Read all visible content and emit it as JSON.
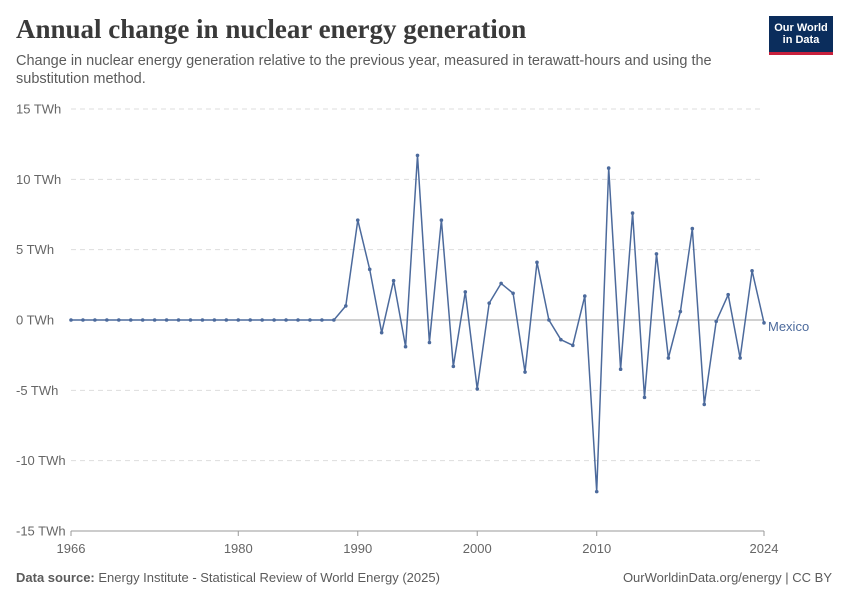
{
  "header": {
    "title": "Annual change in nuclear energy generation",
    "subtitle": "Change in nuclear energy generation relative to the previous year, measured in terawatt-hours and using the substitution method.",
    "logo_line1": "Our World",
    "logo_line2": "in Data"
  },
  "footer": {
    "source_label": "Data source:",
    "source_text": "Energy Institute - Statistical Review of World Energy (2025)",
    "right_text": "OurWorldinData.org/energy | CC BY"
  },
  "colors": {
    "series": "#4c6a9c",
    "grid": "#dddddd",
    "zero_line": "#a0a0a0"
  },
  "chart_data": {
    "type": "line",
    "title": "Annual change in nuclear energy generation",
    "xlabel": "",
    "ylabel": "",
    "xlim": [
      1965,
      2024
    ],
    "ylim": [
      -15,
      15
    ],
    "y_ticks": [
      15,
      10,
      5,
      0,
      -5,
      -10,
      -15
    ],
    "y_tick_labels": [
      "15 TWh",
      "10 TWh",
      "5 TWh",
      "0 TWh",
      "-5 TWh",
      "-10 TWh",
      "-15 TWh"
    ],
    "x_ticks": [
      1966,
      1980,
      1990,
      2000,
      2010,
      2024
    ],
    "x_tick_labels": [
      "1966",
      "1980",
      "1990",
      "2000",
      "2010",
      "2024"
    ],
    "grid": true,
    "series": [
      {
        "name": "Mexico",
        "x": [
          1966,
          1967,
          1968,
          1969,
          1970,
          1971,
          1972,
          1973,
          1974,
          1975,
          1976,
          1977,
          1978,
          1979,
          1980,
          1981,
          1982,
          1983,
          1984,
          1985,
          1986,
          1987,
          1988,
          1989,
          1990,
          1991,
          1992,
          1993,
          1994,
          1995,
          1996,
          1997,
          1998,
          1999,
          2000,
          2001,
          2002,
          2003,
          2004,
          2005,
          2006,
          2007,
          2008,
          2009,
          2010,
          2011,
          2012,
          2013,
          2014,
          2015,
          2016,
          2017,
          2018,
          2019,
          2020,
          2021,
          2022,
          2023,
          2024
        ],
        "values": [
          0,
          0,
          0,
          0,
          0,
          0,
          0,
          0,
          0,
          0,
          0,
          0,
          0,
          0,
          0,
          0,
          0,
          0,
          0,
          0,
          0,
          0,
          0,
          1.0,
          7.1,
          3.6,
          -0.9,
          2.8,
          -1.9,
          11.7,
          -1.6,
          7.1,
          -3.3,
          2.0,
          -4.9,
          1.2,
          2.6,
          1.9,
          -3.7,
          4.1,
          0.0,
          -1.4,
          -1.8,
          1.7,
          -12.2,
          10.8,
          -3.5,
          7.6,
          -5.5,
          4.7,
          -2.7,
          0.6,
          6.5,
          -6.0,
          -0.1,
          1.8,
          -2.7,
          3.5,
          -0.2
        ]
      }
    ]
  }
}
